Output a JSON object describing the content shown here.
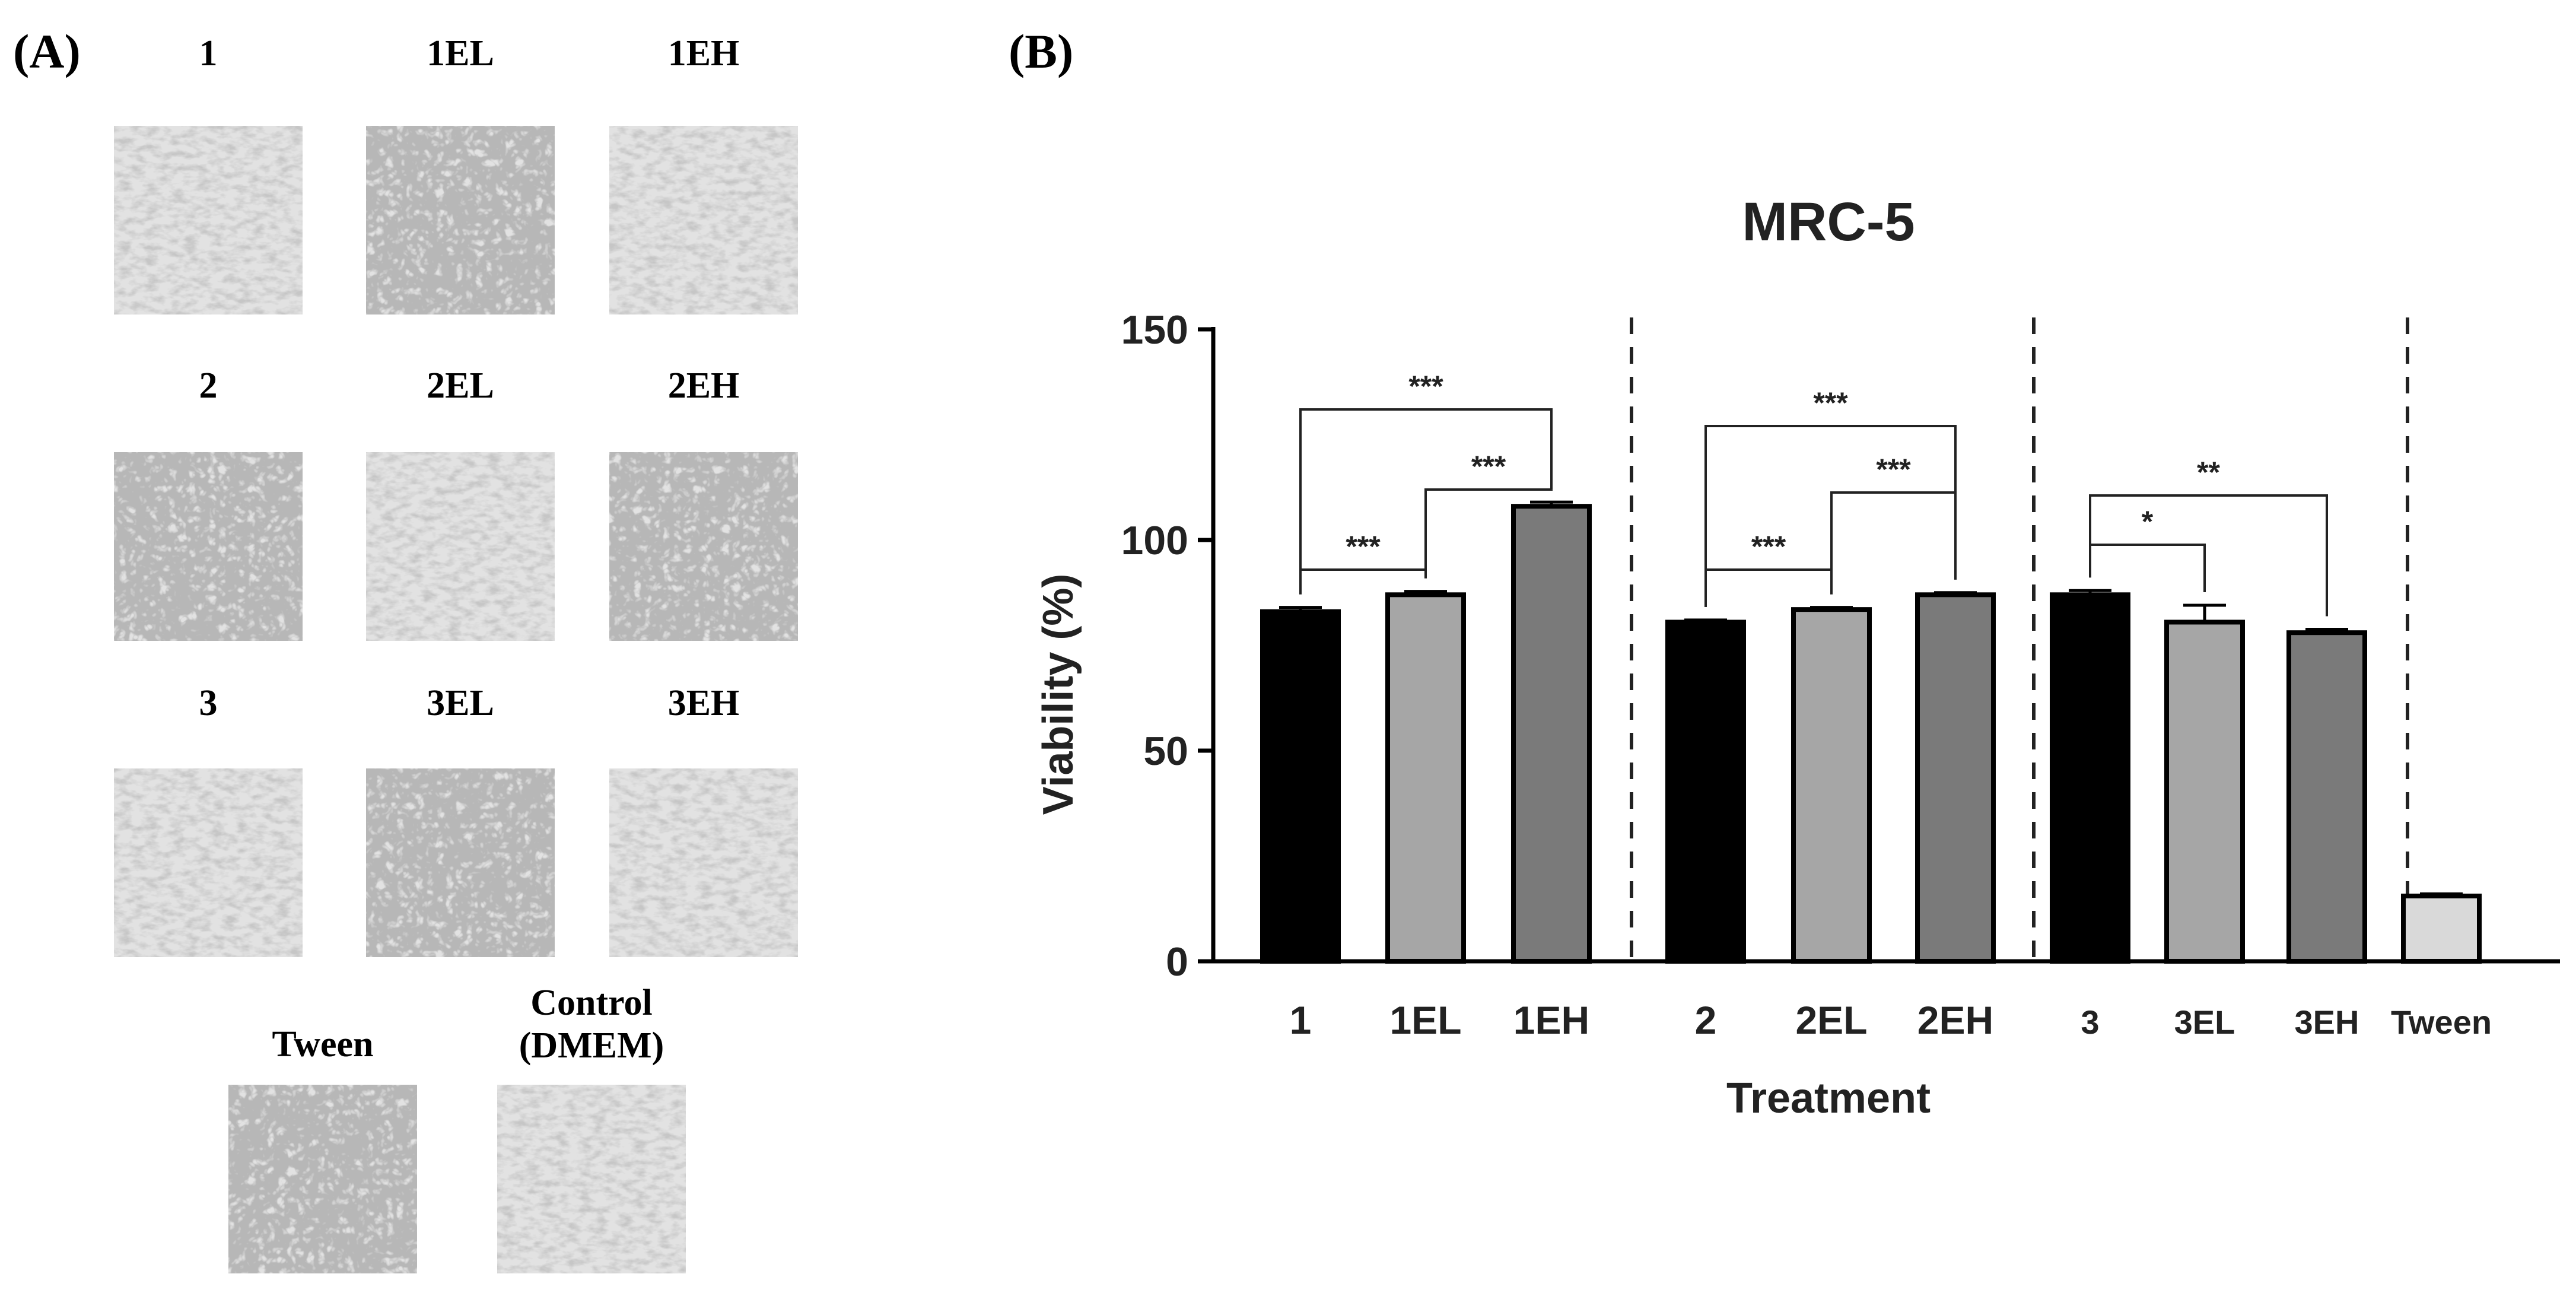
{
  "panel_a": {
    "label": "(A)",
    "tiles": [
      {
        "label": "1"
      },
      {
        "label": "1EL"
      },
      {
        "label": "1EH"
      },
      {
        "label": "2"
      },
      {
        "label": "2EL"
      },
      {
        "label": "2EH"
      },
      {
        "label": "3"
      },
      {
        "label": "3EL"
      },
      {
        "label": "3EH"
      },
      {
        "label": "Tween"
      },
      {
        "label": "Control",
        "label2": "(DMEM)"
      }
    ]
  },
  "panel_b": {
    "label": "(B)"
  },
  "chart_data": {
    "type": "bar",
    "title": "MRC-5",
    "xlabel": "Treatment",
    "ylabel": "Viability (%)",
    "ylim": [
      0,
      150
    ],
    "yticks": [
      0,
      50,
      100,
      150
    ],
    "grid": false,
    "categories": [
      "1",
      "1EL",
      "1EH",
      "2",
      "2EL",
      "2EH",
      "3",
      "3EL",
      "3EH",
      "Tween"
    ],
    "values": [
      83,
      87,
      108,
      80.5,
      83.5,
      87,
      87,
      80.5,
      78,
      15.5
    ],
    "errors": [
      1,
      0.8,
      1,
      0.5,
      0.5,
      0.5,
      1,
      4,
      0.8,
      0.5
    ],
    "bar_colors": [
      "#000000",
      "#a6a6a6",
      "#7a7a7a",
      "#000000",
      "#a6a6a6",
      "#7a7a7a",
      "#000000",
      "#a6a6a6",
      "#7a7a7a",
      "#d9d9d9"
    ],
    "significance": [
      {
        "from": "1",
        "to": "1EL",
        "label": "***"
      },
      {
        "from": "1EL",
        "to": "1EH",
        "label": "***"
      },
      {
        "from": "1",
        "to": "1EH",
        "label": "***"
      },
      {
        "from": "2",
        "to": "2EL",
        "label": "***"
      },
      {
        "from": "2EL",
        "to": "2EH",
        "label": "***"
      },
      {
        "from": "2",
        "to": "2EH",
        "label": "***"
      },
      {
        "from": "3",
        "to": "3EL",
        "label": "*"
      },
      {
        "from": "3",
        "to": "3EH",
        "label": "**"
      }
    ]
  }
}
